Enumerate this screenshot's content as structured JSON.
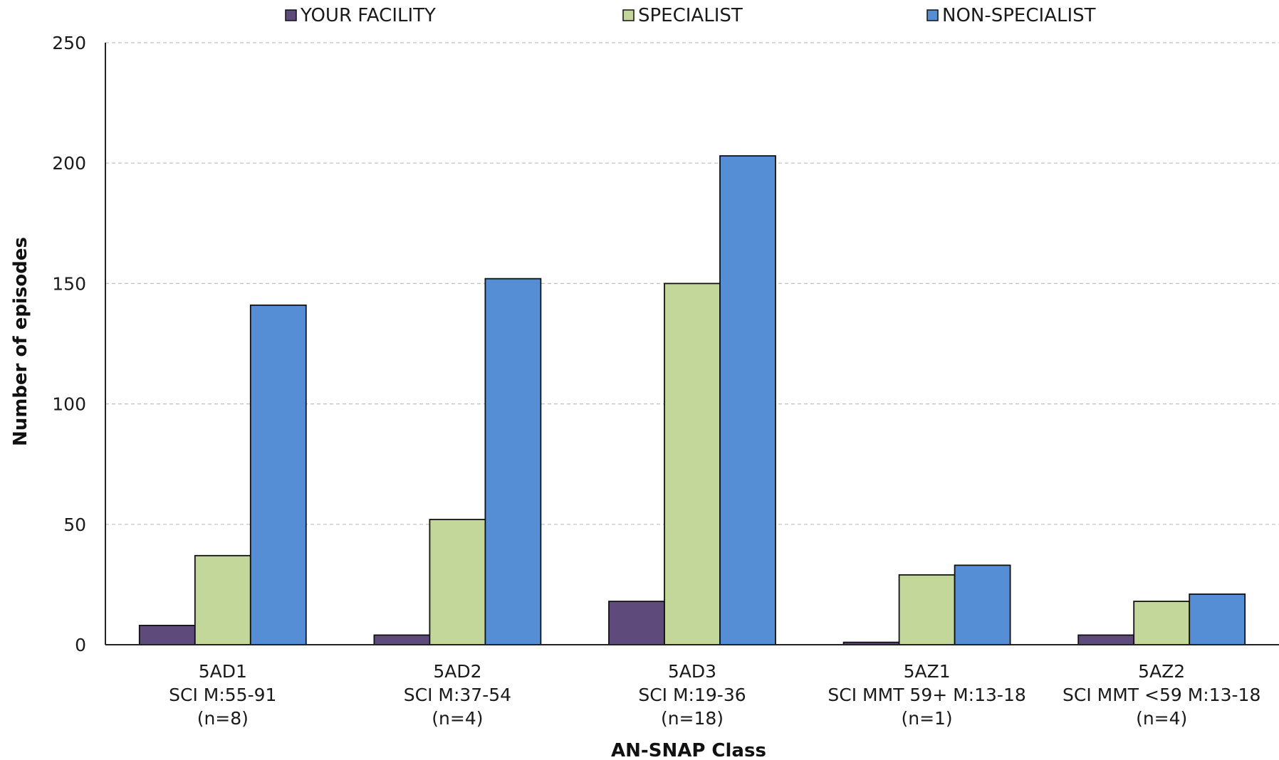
{
  "chart_data": {
    "type": "bar",
    "title": "",
    "xlabel": "AN-SNAP Class",
    "ylabel": "Number of episodes",
    "ylim": [
      0,
      250
    ],
    "yticks": [
      0,
      50,
      100,
      150,
      200,
      250
    ],
    "grid": true,
    "legend_position": "top-center",
    "categories": [
      [
        "5AD1",
        "SCI M:55-91",
        "(n=8)"
      ],
      [
        "5AD2",
        "SCI M:37-54",
        "(n=4)"
      ],
      [
        "5AD3",
        "SCI M:19-36",
        "(n=18)"
      ],
      [
        "5AZ1",
        "SCI MMT 59+ M:13-18",
        "(n=1)"
      ],
      [
        "5AZ2",
        "SCI MMT <59 M:13-18",
        "(n=4)"
      ]
    ],
    "series": [
      {
        "name": "YOUR FACILITY",
        "color": "#5f4b7b",
        "values": [
          8,
          4,
          18,
          1,
          4
        ]
      },
      {
        "name": "SPECIALIST",
        "color": "#c4d79b",
        "values": [
          37,
          52,
          150,
          29,
          18
        ]
      },
      {
        "name": "NON-SPECIALIST",
        "color": "#558ed5",
        "values": [
          141,
          152,
          203,
          33,
          21
        ]
      }
    ]
  }
}
